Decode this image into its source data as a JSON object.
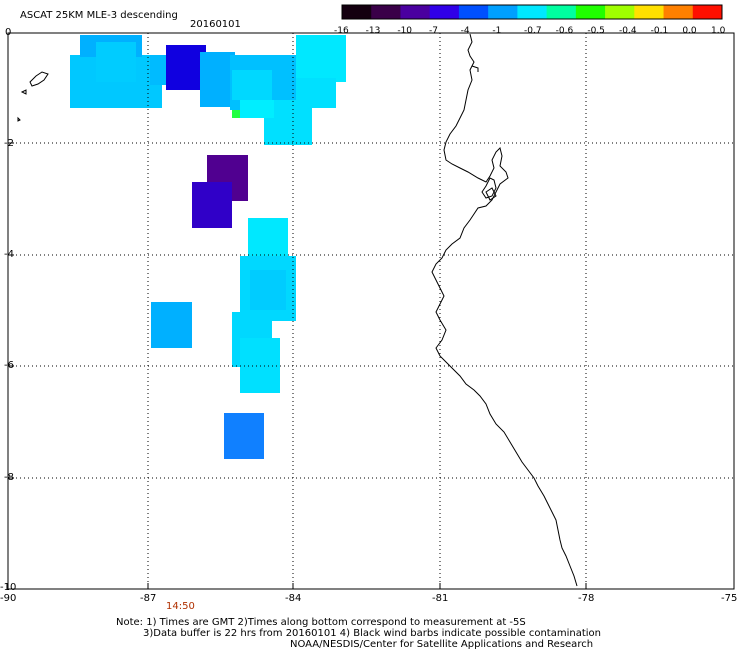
{
  "header": {
    "title": "ASCAT 25KM MLE-3 descending",
    "date": "20160101"
  },
  "colorbar": {
    "labels": [
      "-16",
      "-13",
      "-10",
      "-7",
      "-4",
      "-1",
      "-0.7",
      "-0.6",
      "-0.5",
      "-0.4",
      "-0.1",
      "0.0",
      "1.0"
    ],
    "colors": [
      "#140010",
      "#3a0048",
      "#4a00a0",
      "#3000e8",
      "#0050ff",
      "#00a0ff",
      "#00e8ff",
      "#00ffa0",
      "#20ff00",
      "#a0ff00",
      "#ffe000",
      "#ff8000",
      "#ff1000"
    ]
  },
  "axes": {
    "lat_ticks": [
      "0",
      "-2",
      "-4",
      "-6",
      "-8",
      "-10"
    ],
    "lon_ticks": [
      "-90",
      "-87",
      "-84",
      "-81",
      "-78",
      "-75"
    ],
    "grid": "dotted"
  },
  "pass_time": {
    "label": "14:50",
    "color": "#b03000"
  },
  "notes": {
    "line1": "Note: 1) Times are GMT 2)Times along bottom correspond to measurement at -5S",
    "line2": "3)Data buffer is 22 hrs from 20160101 4) Black wind barbs indicate possible contamination",
    "line3": "NOAA/NESDIS/Center for Satellite Applications and Research"
  },
  "data_colors": {
    "light_cyan": "#00e8ff",
    "light_blue": "#00c8ff",
    "sky_blue": "#00b0ff",
    "medium_blue": "#0090ff",
    "royal_blue": "#1060ff",
    "deep_blue": "#1000e0",
    "indigo": "#3000c8",
    "dark_purple": "#500090",
    "green": "#20ff40",
    "coast": "#000000"
  }
}
